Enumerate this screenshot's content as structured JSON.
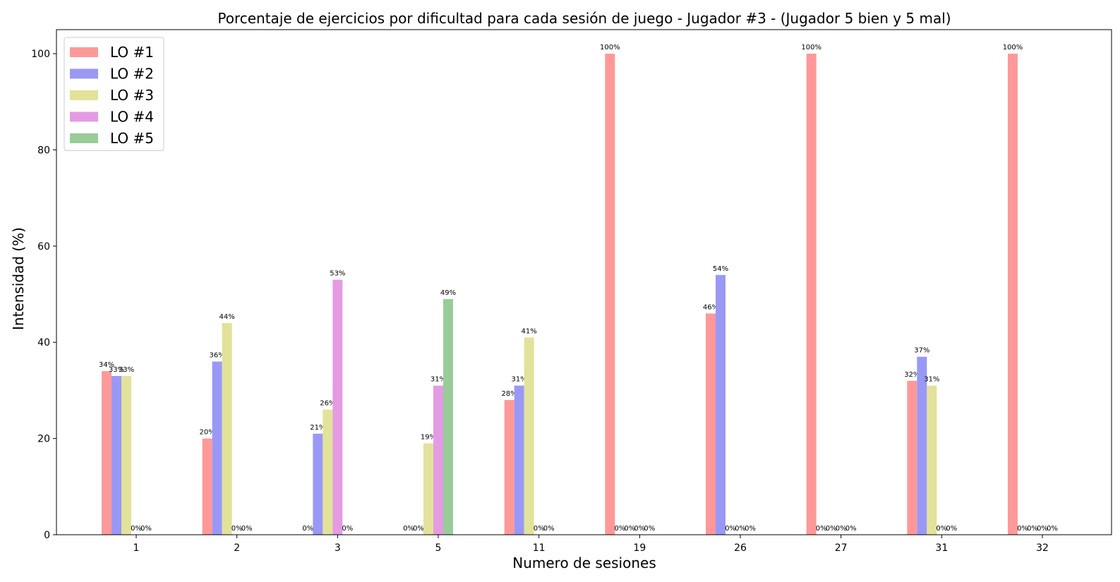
{
  "chart_data": {
    "type": "bar",
    "title": "Porcentaje de ejercicios por dificultad para cada sesión de juego - Jugador #3 - (Jugador 5 bien y 5 mal)",
    "xlabel": "Numero de sesiones",
    "ylabel": "Intensidad (%)",
    "categories": [
      "1",
      "2",
      "3",
      "5",
      "11",
      "19",
      "26",
      "27",
      "31",
      "32"
    ],
    "ylim": [
      0,
      105
    ],
    "yticks": [
      0,
      20,
      40,
      60,
      80,
      100
    ],
    "grid": false,
    "legend_position": "top-left",
    "series": [
      {
        "name": "LO #1",
        "color": "#ff9999",
        "values": [
          34,
          20,
          0,
          0,
          28,
          100,
          46,
          100,
          32,
          100
        ],
        "labels": [
          "34%",
          "20%",
          "0%",
          "0%",
          "28%",
          "100%",
          "46%",
          "100%",
          "32%",
          "100%"
        ]
      },
      {
        "name": "LO #2",
        "color": "#9999f5",
        "values": [
          33,
          36,
          21,
          0,
          31,
          0,
          54,
          0,
          37,
          0
        ],
        "labels": [
          "33%",
          "36%",
          "21%",
          "0%",
          "31%",
          "0%",
          "54%",
          "0%",
          "37%",
          "0%"
        ]
      },
      {
        "name": "LO #3",
        "color": "#e2e29a",
        "values": [
          33,
          44,
          26,
          19,
          41,
          0,
          0,
          0,
          31,
          0
        ],
        "labels": [
          "33%",
          "44%",
          "26%",
          "19%",
          "41%",
          "0%",
          "0%",
          "0%",
          "31%",
          "0%"
        ]
      },
      {
        "name": "LO #4",
        "color": "#e49be4",
        "values": [
          0,
          0,
          53,
          31,
          0,
          0,
          0,
          0,
          0,
          0
        ],
        "labels": [
          "0%",
          "0%",
          "53%",
          "31%",
          "0%",
          "0%",
          "0%",
          "0%",
          "0%",
          "0%"
        ]
      },
      {
        "name": "LO #5",
        "color": "#99cc99",
        "values": [
          0,
          0,
          0,
          49,
          0,
          0,
          0,
          0,
          0,
          0
        ],
        "labels": [
          "0%",
          "0%",
          "0%",
          "49%",
          "0%",
          "0%",
          "0%",
          "0%",
          "0%",
          "0%"
        ]
      }
    ]
  }
}
